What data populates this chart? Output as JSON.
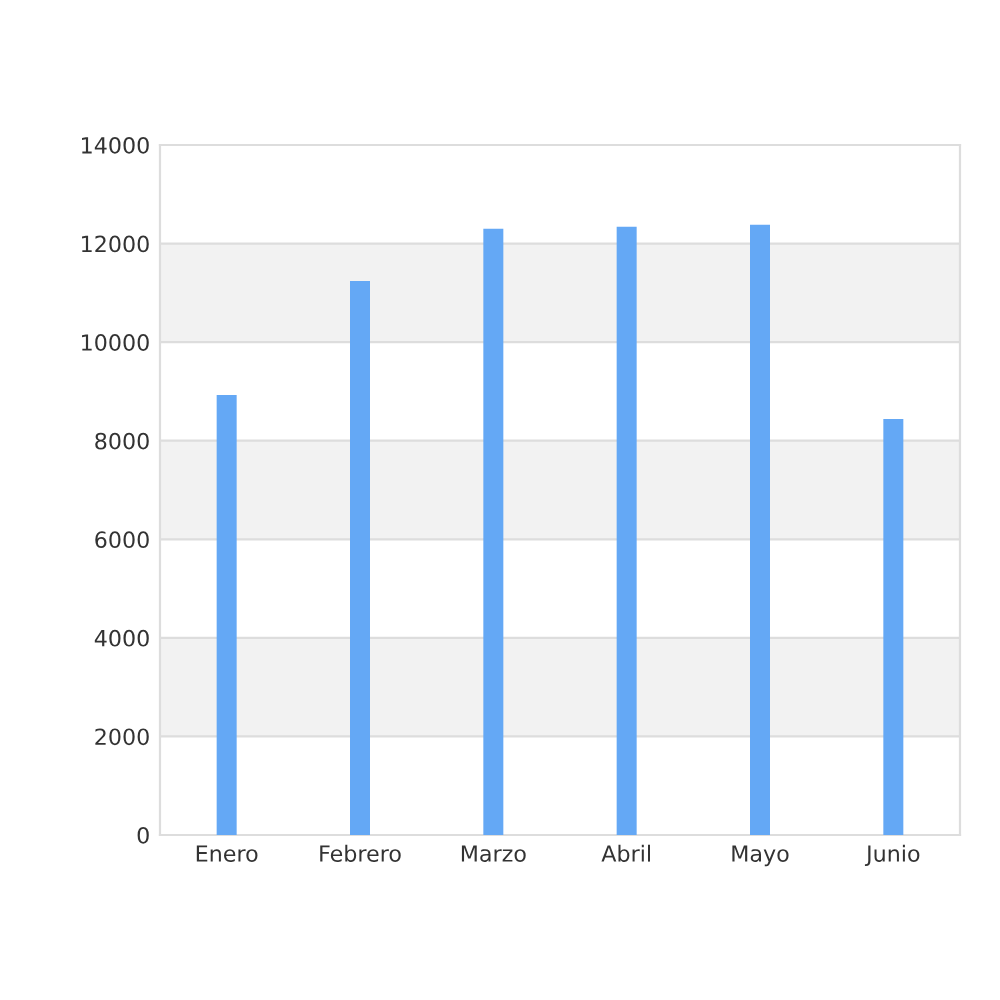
{
  "chart_data": {
    "type": "bar",
    "categories": [
      "Enero",
      "Febrero",
      "Marzo",
      "Abril",
      "Mayo",
      "Junio"
    ],
    "series": [
      {
        "color": "#64a8f5",
        "values": [
          8930,
          11240,
          12300,
          12340,
          12380,
          8440
        ]
      }
    ],
    "ylim": [
      0,
      14000
    ],
    "yticks": [
      0,
      2000,
      4000,
      6000,
      8000,
      10000,
      12000,
      14000
    ],
    "bands": [
      {
        "axis": "y",
        "from": 2000,
        "to": 4000,
        "color": "#f2f2f2"
      },
      {
        "axis": "y",
        "from": 6000,
        "to": 8000,
        "color": "#f2f2f2"
      },
      {
        "axis": "y",
        "from": 10000,
        "to": 12000,
        "color": "#f2f2f2"
      }
    ],
    "grid": "y"
  }
}
